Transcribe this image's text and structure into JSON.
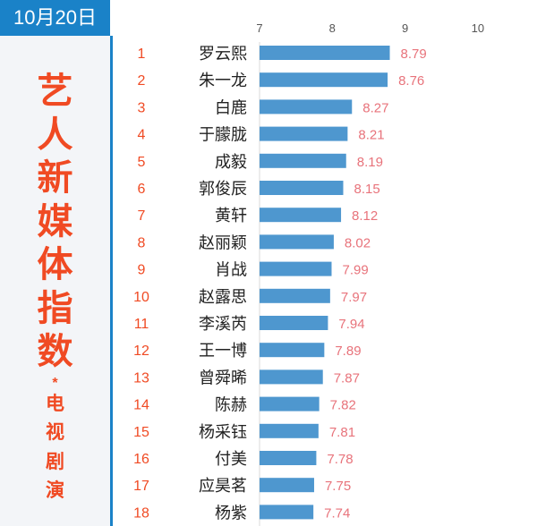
{
  "header": {
    "date": "10月20日",
    "title_chars": [
      "艺",
      "人",
      "新",
      "媒",
      "体",
      "指",
      "数"
    ],
    "asterisk": "*",
    "subtitle_chars": [
      "电",
      "视",
      "剧",
      "演"
    ]
  },
  "colors": {
    "bar": "#4e97cf",
    "value_label": "#e8737b",
    "rank": "#f04a23",
    "accent": "#1a82c8"
  },
  "chart_data": {
    "type": "bar",
    "orientation": "horizontal",
    "xlim": [
      7,
      10
    ],
    "xticks": [
      "7",
      "8",
      "9",
      "10"
    ],
    "categories": [
      "罗云熙",
      "朱一龙",
      "白鹿",
      "于朦胧",
      "成毅",
      "郭俊辰",
      "黄轩",
      "赵丽颖",
      "肖战",
      "赵露思",
      "李溪芮",
      "王一博",
      "曾舜晞",
      "陈赫",
      "杨采钰",
      "付美",
      "应昊茗",
      "杨紫"
    ],
    "ranks": [
      "1",
      "2",
      "3",
      "4",
      "5",
      "6",
      "7",
      "8",
      "9",
      "10",
      "11",
      "12",
      "13",
      "14",
      "15",
      "16",
      "17",
      "18"
    ],
    "values": [
      8.79,
      8.76,
      8.27,
      8.21,
      8.19,
      8.15,
      8.12,
      8.02,
      7.99,
      7.97,
      7.94,
      7.89,
      7.87,
      7.82,
      7.81,
      7.78,
      7.75,
      7.74
    ],
    "value_labels": [
      "8.79",
      "8.76",
      "8.27",
      "8.21",
      "8.19",
      "8.15",
      "8.12",
      "8.02",
      "7.99",
      "7.97",
      "7.94",
      "7.89",
      "7.87",
      "7.82",
      "7.81",
      "7.78",
      "7.75",
      "7.74"
    ]
  }
}
